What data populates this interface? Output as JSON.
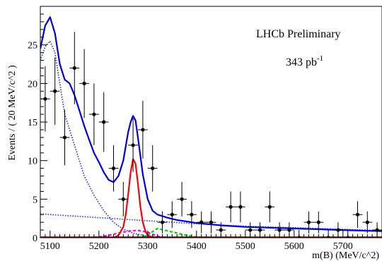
{
  "chart_data": {
    "type": "scatter",
    "title": "",
    "xlabel": "m(B) (MeV/c^2)",
    "ylabel": "Events / ( 20 MeV/c^2 )",
    "xlim": [
      5080,
      5780
    ],
    "ylim": [
      0,
      30
    ],
    "annotations": [
      "LHCb Preliminary",
      "343 pb",
      "-1"
    ],
    "x_ticks": [
      5100,
      5200,
      5300,
      5400,
      5500,
      5600,
      5700
    ],
    "y_ticks": [
      0,
      5,
      10,
      15,
      20,
      25
    ],
    "grid": false,
    "legend": "none",
    "data_points": {
      "x": [
        5090,
        5110,
        5130,
        5150,
        5170,
        5190,
        5210,
        5230,
        5250,
        5270,
        5290,
        5310,
        5330,
        5350,
        5370,
        5390,
        5410,
        5430,
        5450,
        5470,
        5490,
        5510,
        5530,
        5550,
        5570,
        5590,
        5610,
        5630,
        5650,
        5670,
        5690,
        5710,
        5730,
        5750,
        5770
      ],
      "y": [
        18,
        19,
        13,
        22,
        20,
        16,
        15,
        9,
        5,
        12,
        14,
        9,
        2,
        3,
        5,
        3,
        2,
        2,
        1,
        4,
        4,
        1,
        1,
        4,
        1,
        1,
        0,
        2,
        2,
        0,
        1,
        0,
        3,
        2,
        1
      ]
    },
    "series": [
      {
        "kind": "total",
        "color": "#0000dd",
        "x": [
          5080,
          5090,
          5100,
          5110,
          5120,
          5130,
          5140,
          5150,
          5160,
          5170,
          5180,
          5190,
          5200,
          5210,
          5220,
          5230,
          5240,
          5250,
          5260,
          5265,
          5270,
          5275,
          5280,
          5290,
          5300,
          5310,
          5320,
          5340,
          5360,
          5380,
          5400,
          5450,
          5500,
          5550,
          5600,
          5650,
          5700,
          5750,
          5780
        ],
        "y": [
          24.5,
          27.5,
          28.6,
          26.5,
          22.5,
          20.5,
          20,
          18.5,
          16.5,
          14.5,
          12.7,
          11,
          9.8,
          8.5,
          7.5,
          7.2,
          8,
          10,
          13.7,
          15,
          15.8,
          15.2,
          13,
          8.2,
          5,
          3.5,
          3,
          2.6,
          2.3,
          2.1,
          1.9,
          1.6,
          1.4,
          1.3,
          1.2,
          1.1,
          1.0,
          0.9,
          0.85
        ]
      },
      {
        "kind": "partial-reco",
        "color": "#2222bb",
        "x": [
          5080,
          5090,
          5100,
          5110,
          5120,
          5130,
          5140,
          5150,
          5170,
          5190,
          5210,
          5230,
          5250,
          5270,
          5290,
          5310,
          5330,
          5350
        ],
        "y": [
          23,
          24.8,
          25.5,
          24,
          20,
          16,
          14,
          12,
          8,
          5.5,
          3.5,
          2,
          1.1,
          0.6,
          0.3,
          0.15,
          0.05,
          0
        ]
      },
      {
        "kind": "combinatorial",
        "color": "#2233cc",
        "x": [
          5080,
          5150,
          5200,
          5250,
          5300,
          5350,
          5400,
          5450,
          5500,
          5550,
          5600,
          5650,
          5700,
          5750,
          5780
        ],
        "y": [
          3.1,
          2.8,
          2.6,
          2.4,
          2.2,
          2.0,
          1.8,
          1.65,
          1.5,
          1.4,
          1.3,
          1.2,
          1.1,
          1.0,
          0.95
        ]
      },
      {
        "kind": "signal",
        "color": "#ff0000",
        "x": [
          5230,
          5240,
          5250,
          5255,
          5260,
          5265,
          5270,
          5275,
          5280,
          5285,
          5290,
          5295,
          5300,
          5310,
          5320
        ],
        "y": [
          0,
          0.3,
          1.4,
          3,
          5.6,
          8.5,
          10.2,
          9.6,
          7,
          4,
          2,
          0.9,
          0.3,
          0.05,
          0
        ]
      },
      {
        "kind": "magenta-dashed",
        "color": "#ee00ee",
        "x": [
          5180,
          5200,
          5220,
          5240,
          5260,
          5280,
          5300,
          5320,
          5340
        ],
        "y": [
          0,
          0.1,
          0.3,
          0.6,
          0.85,
          0.95,
          0.7,
          0.2,
          0
        ]
      },
      {
        "kind": "green-dashed",
        "color": "#00cc00",
        "x": [
          5280,
          5300,
          5310,
          5320,
          5340,
          5360,
          5380,
          5400,
          5420
        ],
        "y": [
          0,
          0.3,
          0.8,
          1.2,
          0.9,
          0.6,
          0.3,
          0.1,
          0
        ]
      }
    ]
  }
}
